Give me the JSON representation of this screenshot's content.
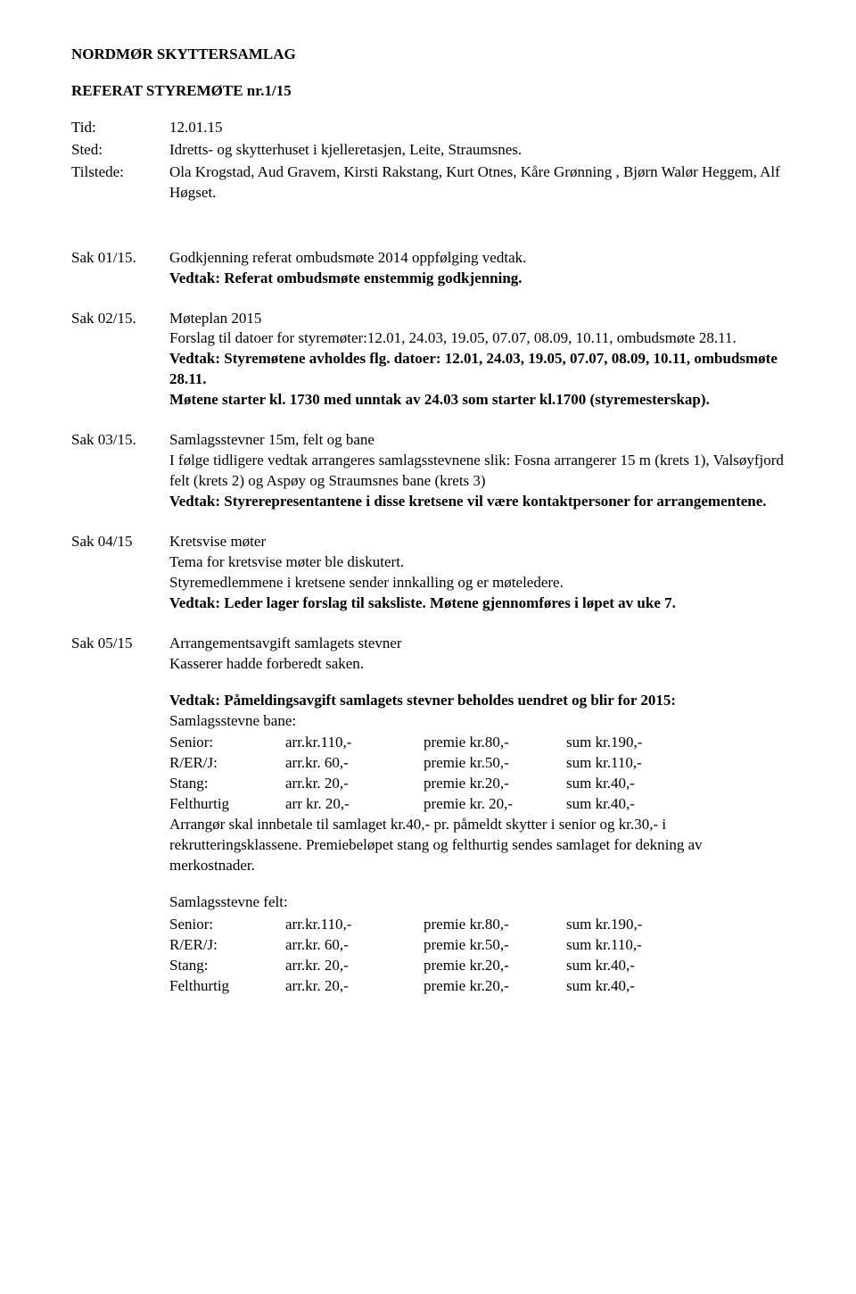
{
  "title": "NORDMØR SKYTTERSAMLAG",
  "subtitle": "REFERAT STYREMØTE  nr.1/15",
  "meta": {
    "tid_label": "Tid:",
    "tid_value": "12.01.15",
    "sted_label": "Sted:",
    "sted_value": "Idretts- og skytterhuset i kjelleretasjen, Leite, Straumsnes.",
    "tilstede_label": "Tilstede:",
    "tilstede_value": "Ola Krogstad, Aud Gravem, Kirsti Rakstang, Kurt Otnes, Kåre Grønning , Bjørn Walør Heggem, Alf Høgset."
  },
  "sak01": {
    "label": "Sak 01/15.",
    "l1": "Godkjenning referat ombudsmøte 2014 oppfølging vedtak.",
    "l2": "Vedtak: Referat ombudsmøte enstemmig godkjenning."
  },
  "sak02": {
    "label": "Sak 02/15.",
    "l1": "Møteplan 2015",
    "l2": "Forslag til datoer for styremøter:12.01, 24.03, 19.05, 07.07, 08.09, 10.11, ombudsmøte 28.11.",
    "l3": "Vedtak: Styremøtene avholdes flg. datoer: 12.01, 24.03, 19.05, 07.07, 08.09, 10.11, ombudsmøte 28.11.",
    "l4a": " Møtene starter kl. 1730 med unntak av 24.03 som starter kl.1700 (styremesterskap)."
  },
  "sak03": {
    "label": "Sak 03/15.",
    "l1": "Samlagsstevner 15m, felt og bane",
    "l2": "I følge tidligere vedtak arrangeres samlagsstevnene slik: Fosna arrangerer 15 m (krets 1), Valsøyfjord felt (krets 2) og Aspøy og Straumsnes bane (krets 3)",
    "l3": "Vedtak: Styrerepresentantene i disse kretsene vil være kontaktpersoner for arrangementene."
  },
  "sak04": {
    "label": "Sak 04/15",
    "l1": "Kretsvise møter",
    "l2": "Tema for kretsvise møter ble diskutert.",
    "l3": "Styremedlemmene i kretsene sender innkalling og er møteledere.",
    "l4": "Vedtak: Leder lager forslag til saksliste. Møtene gjennomføres i løpet av uke 7."
  },
  "sak05": {
    "label": "Sak 05/15",
    "l1": "Arrangementsavgift samlagets stevner",
    "l2": "Kasserer hadde forberedt saken.",
    "l3": "Vedtak: Påmeldingsavgift samlagets stevner beholdes uendret og blir for 2015:",
    "bane_heading": "Samlagsstevne bane:",
    "bane_rows": [
      {
        "c1": "Senior:",
        "c2": "arr.kr.110,-",
        "c3": "premie kr.80,-",
        "c4": "sum kr.190,-"
      },
      {
        "c1": "R/ER/J:",
        "c2": "arr.kr.  60,-",
        "c3": "premie kr.50,-",
        "c4": "sum kr.110,-"
      },
      {
        "c1": "Stang:",
        "c2": "arr.kr.  20,-",
        "c3": "premie kr.20,-",
        "c4": "sum kr.40,-"
      },
      {
        "c1": "Felthurtig",
        "c2": "arr kr.  20,-",
        "c3": "premie kr. 20,-",
        "c4": "sum kr.40,-"
      }
    ],
    "bane_note": "Arrangør skal innbetale til samlaget kr.40,- pr. påmeldt skytter i senior og kr.30,- i rekrutteringsklassene. Premiebeløpet stang og felthurtig sendes samlaget for dekning av merkostnader.",
    "felt_heading": "Samlagsstevne felt:",
    "felt_rows": [
      {
        "c1": "Senior:",
        "c2": "arr.kr.110,-",
        "c3": "premie kr.80,-",
        "c4": "sum kr.190,-"
      },
      {
        "c1": "R/ER/J:",
        "c2": "arr.kr.  60,-",
        "c3": "premie kr.50,-",
        "c4": "sum kr.110,-"
      },
      {
        "c1": "Stang:",
        "c2": "arr.kr.  20,-",
        "c3": "premie kr.20,-",
        "c4": "sum kr.40,-"
      },
      {
        "c1": "Felthurtig",
        "c2": "arr.kr.  20,-",
        "c3": "premie kr.20,-",
        "c4": "sum kr.40,-"
      }
    ]
  }
}
